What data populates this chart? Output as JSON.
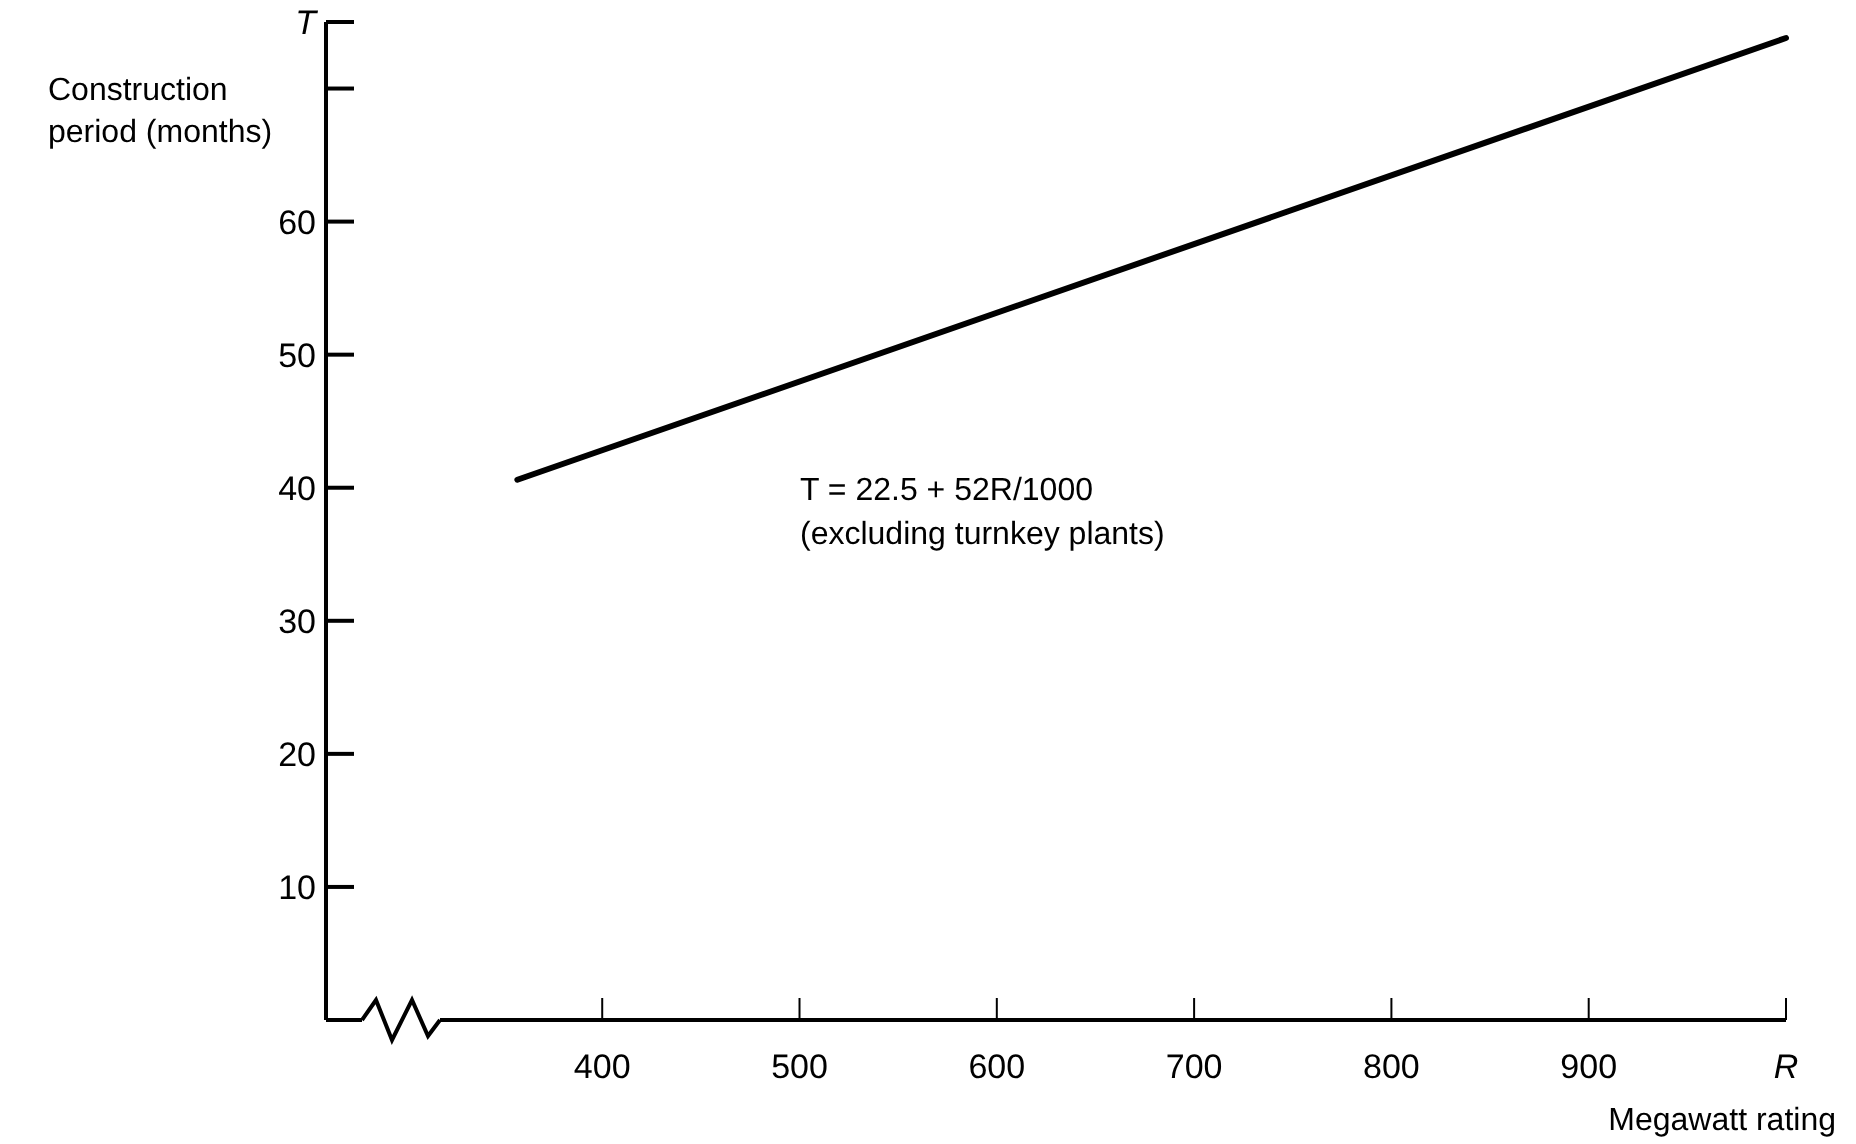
{
  "chart_data": {
    "type": "line",
    "xlabel": "Megawatt rating",
    "ylabel": "Construction period (months)",
    "x": [
      357,
      1000
    ],
    "series": [
      {
        "color": "#000000",
        "values": [
          40.6,
          73.8
        ]
      }
    ],
    "xlim": [
      260,
      1000
    ],
    "xticks": [
      400,
      500,
      600,
      700,
      800,
      900,
      {
        "value": 1000,
        "label": "R"
      }
    ],
    "ylim": [
      0,
      75
    ],
    "yticks": [
      10,
      20,
      30,
      40,
      50,
      60,
      {
        "value": 70,
        "label": null
      },
      {
        "value": 75,
        "label": "T"
      }
    ],
    "annotations": [
      "T = 22.5 + 52R/1000",
      "(excluding turnkey plants)"
    ],
    "grid": false,
    "marker": "none",
    "line_style": "solid"
  }
}
